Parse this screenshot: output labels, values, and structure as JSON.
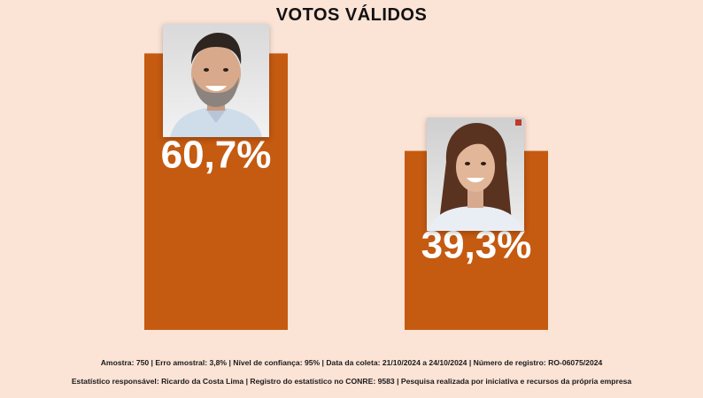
{
  "chart_data": {
    "type": "bar",
    "title": "VOTOS VÁLIDOS",
    "categories": [
      "",
      ""
    ],
    "values": [
      60.7,
      39.3
    ],
    "value_labels": [
      "60,7%",
      "39,3%"
    ],
    "ylim": [
      0,
      100
    ],
    "grid": false,
    "bar_color": "#c55a11"
  },
  "candidates": [
    {
      "photo_icon": "male-candidate-photo"
    },
    {
      "photo_icon": "female-candidate-photo"
    }
  ],
  "footer": {
    "line1": "Amostra: 750 | Erro amostral: 3,8% | Nível de confiança: 95% | Data da coleta: 21/10/2024 a 24/10/2024 | Número de registro: RO-06075/2024",
    "line2": "Estatístico responsável: Ricardo da Costa Lima | Registro do estatístico no CONRE: 9583 | Pesquisa realizada por iniciativa e recursos da própria empresa"
  },
  "colors": {
    "background": "#fbe3d6",
    "bar": "#c55a11",
    "label": "#ffffff"
  }
}
